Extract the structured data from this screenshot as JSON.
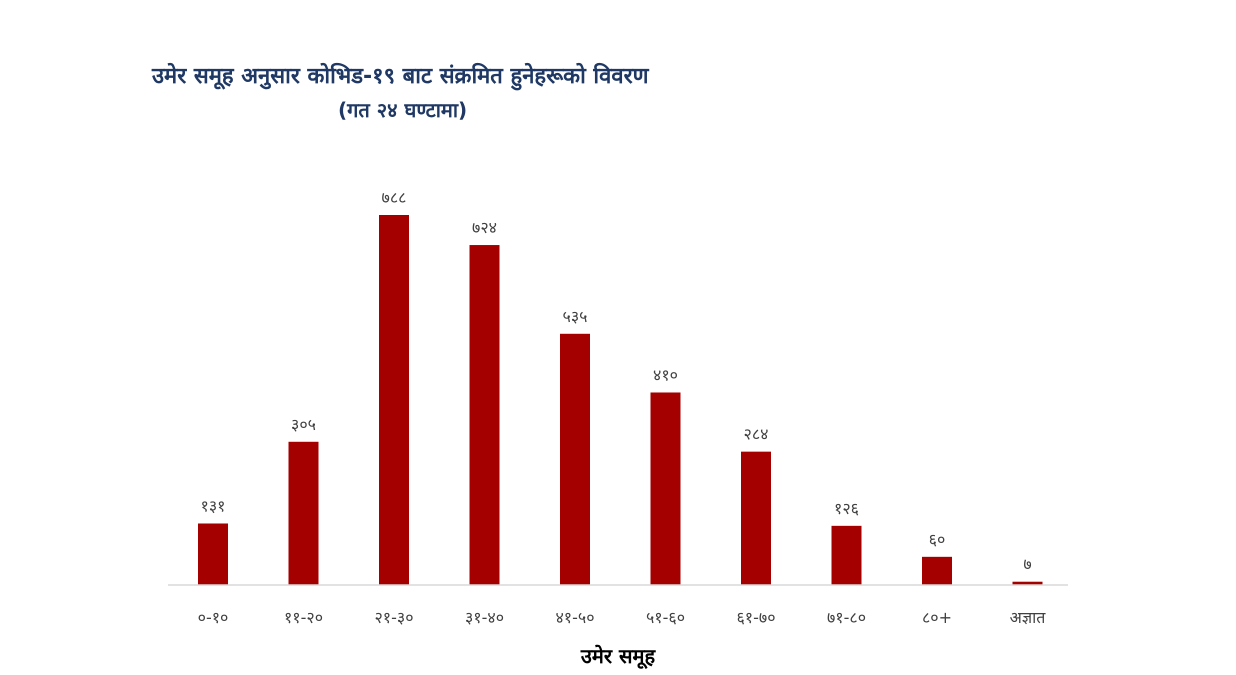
{
  "chart_data": {
    "type": "bar",
    "title": "उमेर समूह अनुसार कोभिड-१९ बाट संक्रमित हुनेहरूको विवरण",
    "subtitle": "(गत २४ घण्टामा)",
    "xlabel": "उमेर समूह",
    "ylabel": "",
    "categories": [
      "०-१०",
      "११-२०",
      "२१-३०",
      "३१-४०",
      "४१-५०",
      "५१-६०",
      "६१-७०",
      "७१-८०",
      "८०+",
      "अज्ञात"
    ],
    "values": [
      131,
      305,
      788,
      724,
      535,
      410,
      284,
      126,
      60,
      7
    ],
    "value_labels": [
      "१३१",
      "३०५",
      "७८८",
      "७२४",
      "५३५",
      "४१०",
      "२८४",
      "१२६",
      "६०",
      "७"
    ],
    "ylim": [
      0,
      788
    ],
    "grid": false,
    "legend": "none",
    "bar_color": "#a50000",
    "axis_color": "#d9d9d9",
    "title_color": "#1f3864"
  }
}
